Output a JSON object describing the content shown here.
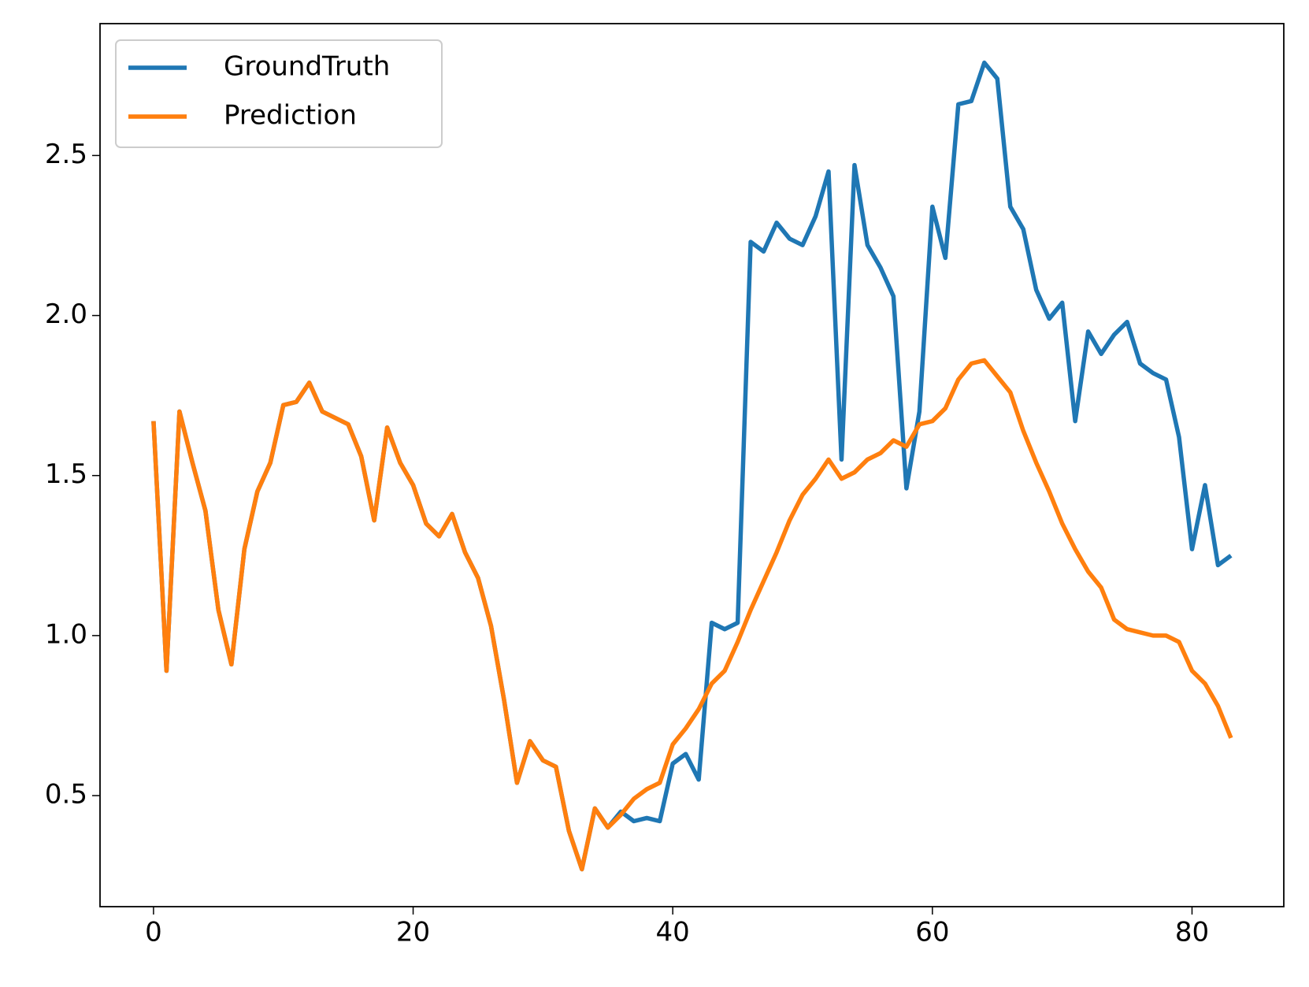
{
  "chart_data": {
    "type": "line",
    "x": [
      0,
      1,
      2,
      3,
      4,
      5,
      6,
      7,
      8,
      9,
      10,
      11,
      12,
      13,
      14,
      15,
      16,
      17,
      18,
      19,
      20,
      21,
      22,
      23,
      24,
      25,
      26,
      27,
      28,
      29,
      30,
      31,
      32,
      33,
      34,
      35,
      36,
      37,
      38,
      39,
      40,
      41,
      42,
      43,
      44,
      45,
      46,
      47,
      48,
      49,
      50,
      51,
      52,
      53,
      54,
      55,
      56,
      57,
      58,
      59,
      60,
      61,
      62,
      63,
      64,
      65,
      66,
      67,
      68,
      69,
      70,
      71,
      72,
      73,
      74,
      75,
      76,
      77,
      78,
      79,
      80,
      81,
      82,
      83
    ],
    "series": [
      {
        "name": "GroundTruth",
        "color": "#1f77b4",
        "values": [
          1.67,
          0.89,
          1.7,
          1.54,
          1.39,
          1.08,
          0.91,
          1.27,
          1.45,
          1.54,
          1.72,
          1.73,
          1.79,
          1.7,
          1.68,
          1.66,
          1.56,
          1.36,
          1.65,
          1.54,
          1.47,
          1.35,
          1.31,
          1.38,
          1.26,
          1.18,
          1.03,
          0.8,
          0.54,
          0.67,
          0.61,
          0.59,
          0.39,
          0.27,
          0.46,
          0.4,
          0.45,
          0.42,
          0.43,
          0.42,
          0.6,
          0.63,
          0.55,
          1.04,
          1.02,
          1.04,
          2.23,
          2.2,
          2.29,
          2.24,
          2.22,
          2.31,
          2.45,
          1.55,
          2.47,
          2.22,
          2.15,
          2.06,
          1.46,
          1.7,
          2.34,
          2.18,
          2.66,
          2.67,
          2.79,
          2.74,
          2.34,
          2.27,
          2.08,
          1.99,
          2.04,
          1.67,
          1.95,
          1.88,
          1.94,
          1.98,
          1.85,
          1.82,
          1.8,
          1.62,
          1.27,
          1.47,
          1.22,
          1.25
        ]
      },
      {
        "name": "Prediction",
        "color": "#ff7f0e",
        "values": [
          1.67,
          0.89,
          1.7,
          1.54,
          1.39,
          1.08,
          0.91,
          1.27,
          1.45,
          1.54,
          1.72,
          1.73,
          1.79,
          1.7,
          1.68,
          1.66,
          1.56,
          1.36,
          1.65,
          1.54,
          1.47,
          1.35,
          1.31,
          1.38,
          1.26,
          1.18,
          1.03,
          0.8,
          0.54,
          0.67,
          0.61,
          0.59,
          0.39,
          0.27,
          0.46,
          0.4,
          0.44,
          0.49,
          0.52,
          0.54,
          0.66,
          0.71,
          0.77,
          0.85,
          0.89,
          0.98,
          1.08,
          1.17,
          1.26,
          1.36,
          1.44,
          1.49,
          1.55,
          1.49,
          1.51,
          1.55,
          1.57,
          1.61,
          1.59,
          1.66,
          1.67,
          1.71,
          1.8,
          1.85,
          1.86,
          1.81,
          1.76,
          1.64,
          1.54,
          1.45,
          1.35,
          1.27,
          1.2,
          1.15,
          1.05,
          1.02,
          1.01,
          1.0,
          1.0,
          0.98,
          0.89,
          0.85,
          0.78,
          0.68
        ]
      }
    ],
    "xlim": [
      -4.12,
      87.07
    ],
    "xticks": [
      0,
      20,
      40,
      60,
      80
    ],
    "ylim": [
      0.153,
      2.912
    ],
    "yticks": [
      {
        "value": 0.5,
        "label": "0.5"
      },
      {
        "value": 1.0,
        "label": "1.0"
      },
      {
        "value": 1.5,
        "label": "1.5"
      },
      {
        "value": 2.0,
        "label": "2.0"
      },
      {
        "value": 2.5,
        "label": "2.5"
      }
    ],
    "legend": "upper left"
  }
}
